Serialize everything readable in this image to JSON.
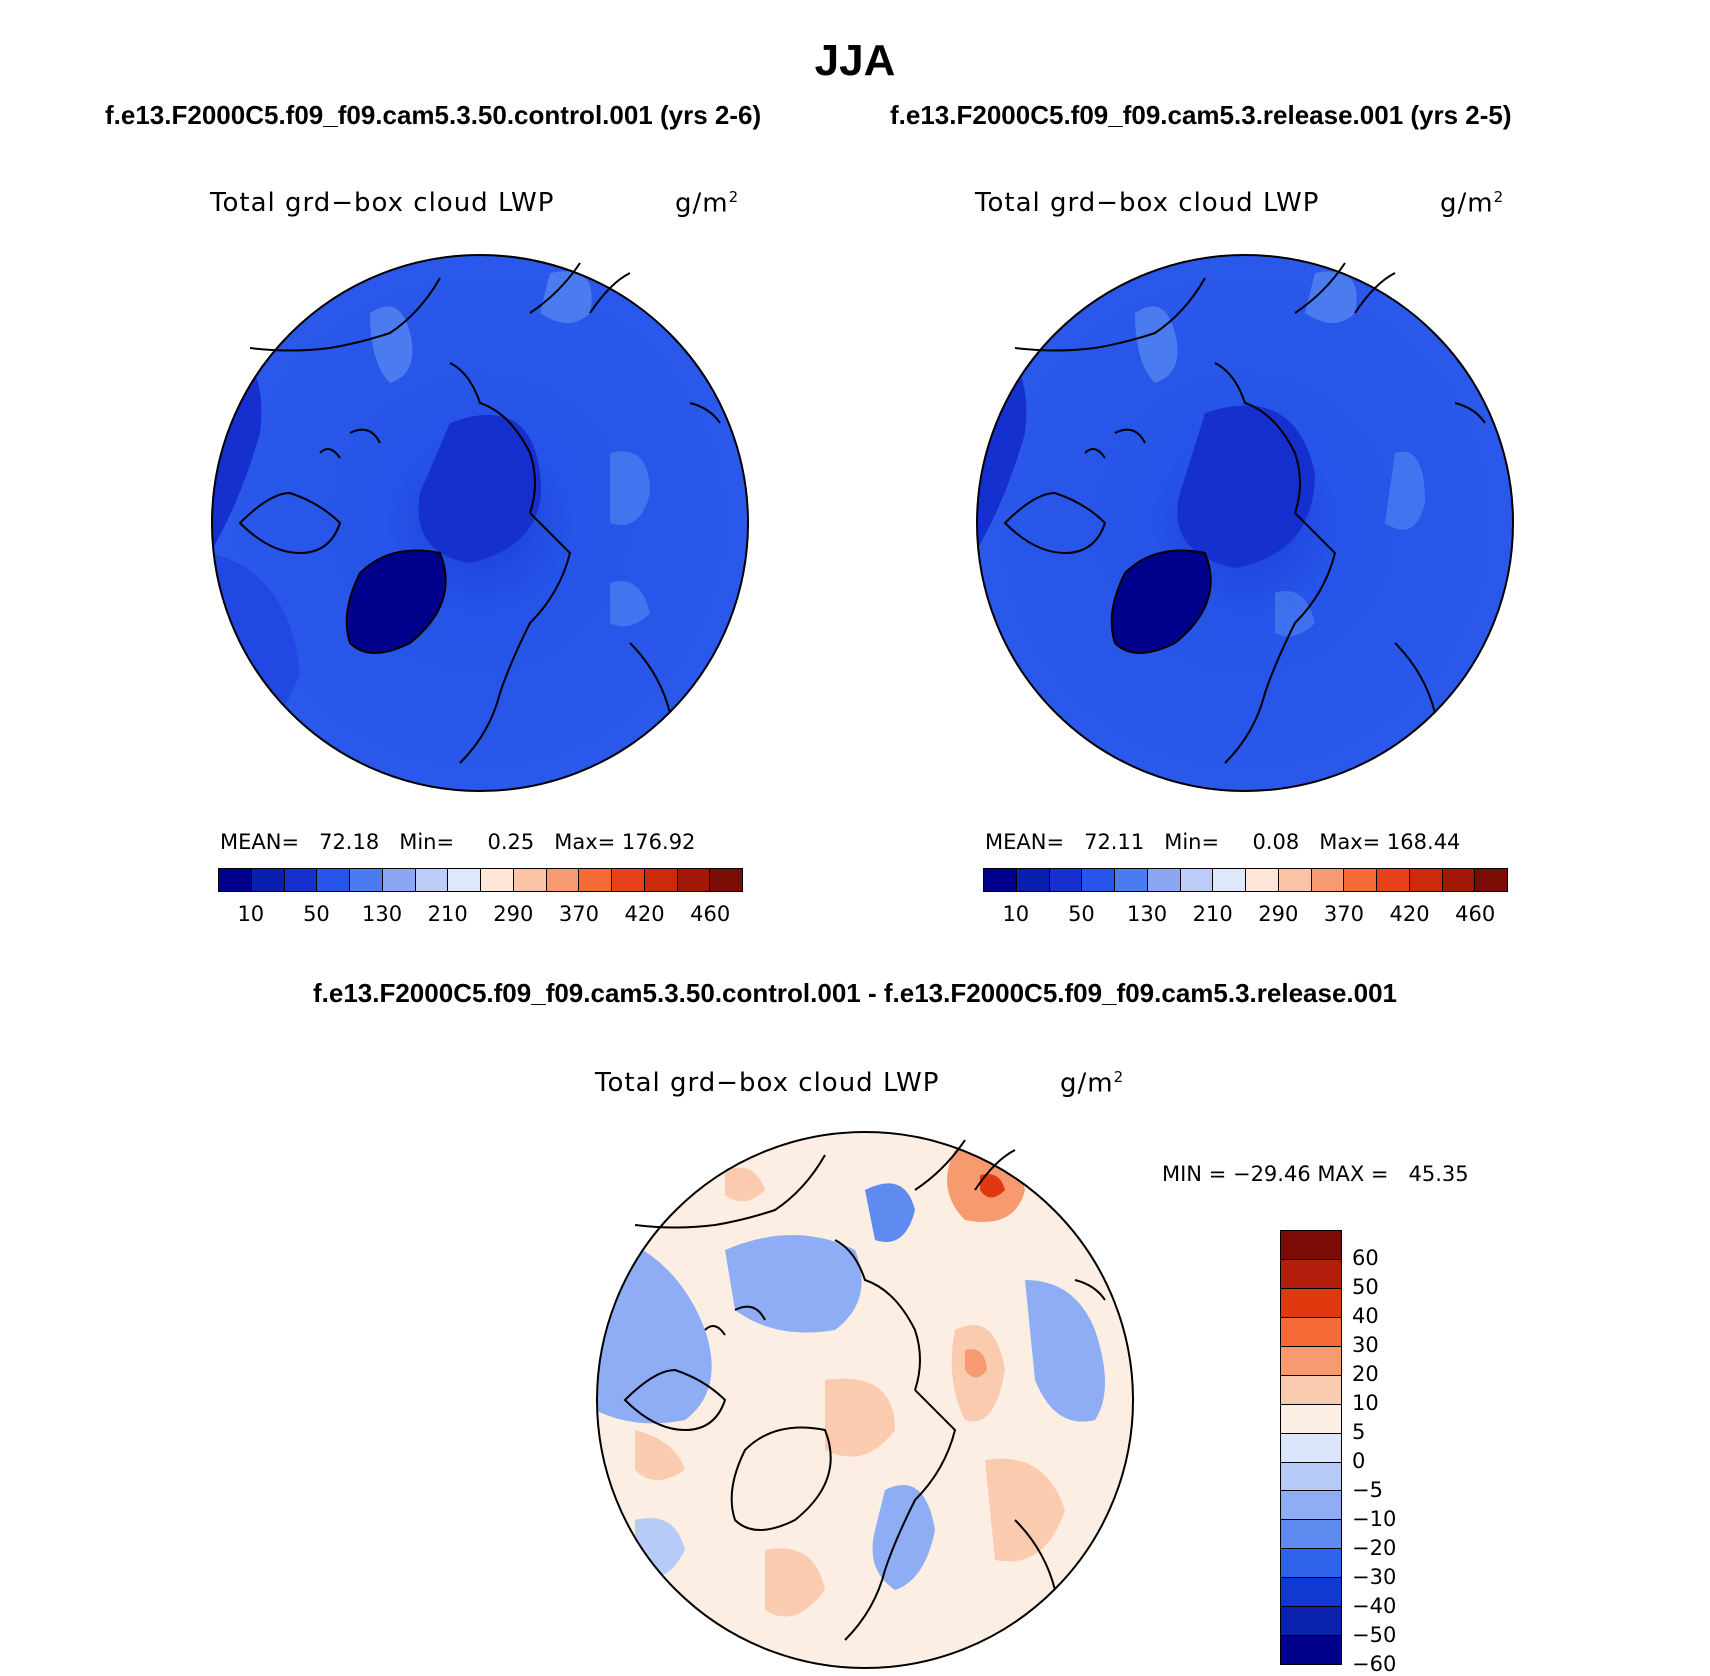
{
  "figure": {
    "season": "JJA",
    "left_case_title": "f.e13.F2000C5.f09_f09.cam5.3.50.control.001 (yrs 2-6)",
    "right_case_title": "f.e13.F2000C5.f09_f09.cam5.3.release.001 (yrs 2-5)",
    "diff_title": "f.e13.F2000C5.f09_f09.cam5.3.50.control.001 - f.e13.F2000C5.f09_f09.cam5.3.release.001"
  },
  "panels": {
    "left": {
      "variable": "Total grd−box cloud LWP",
      "units_base": "g/m",
      "units_exp": "2",
      "stats": "MEAN=   72.18   Min=     0.25   Max= 176.92",
      "colorbar_labels": [
        "10",
        "50",
        "130",
        "210",
        "290",
        "370",
        "420",
        "460"
      ]
    },
    "right": {
      "variable": "Total grd−box cloud LWP",
      "units_base": "g/m",
      "units_exp": "2",
      "stats": "MEAN=   72.11   Min=     0.08   Max= 168.44",
      "colorbar_labels": [
        "10",
        "50",
        "130",
        "210",
        "290",
        "370",
        "420",
        "460"
      ]
    },
    "diff": {
      "variable": "Total grd−box cloud LWP",
      "units_base": "g/m",
      "units_exp": "2",
      "stats": "MIN = −29.46 MAX =   45.35",
      "colorbar_labels": [
        "60",
        "50",
        "40",
        "30",
        "20",
        "10",
        "5",
        "0",
        "−5",
        "−10",
        "−20",
        "−30",
        "−40",
        "−50",
        "−60"
      ]
    }
  },
  "colors": {
    "abs_scale": [
      "#00008b",
      "#0a1fae",
      "#1530cf",
      "#2654e8",
      "#4a7cf0",
      "#8ba7f4",
      "#bccbf8",
      "#dfe7fb",
      "#fde6d8",
      "#fbc4a6",
      "#f79a72",
      "#f56b38",
      "#e8401a",
      "#cc2a0c",
      "#a41808",
      "#7a0b05"
    ],
    "diff_scale": [
      "#7a0b05",
      "#b31d0b",
      "#e0380f",
      "#f56b38",
      "#f89a70",
      "#fbcbb0",
      "#fdeee4",
      "#dbe6fb",
      "#b7cbf8",
      "#8eadf4",
      "#5f8af0",
      "#2e62e8",
      "#1138cf",
      "#0a22ab",
      "#00008b"
    ],
    "coastline": "#000000"
  }
}
